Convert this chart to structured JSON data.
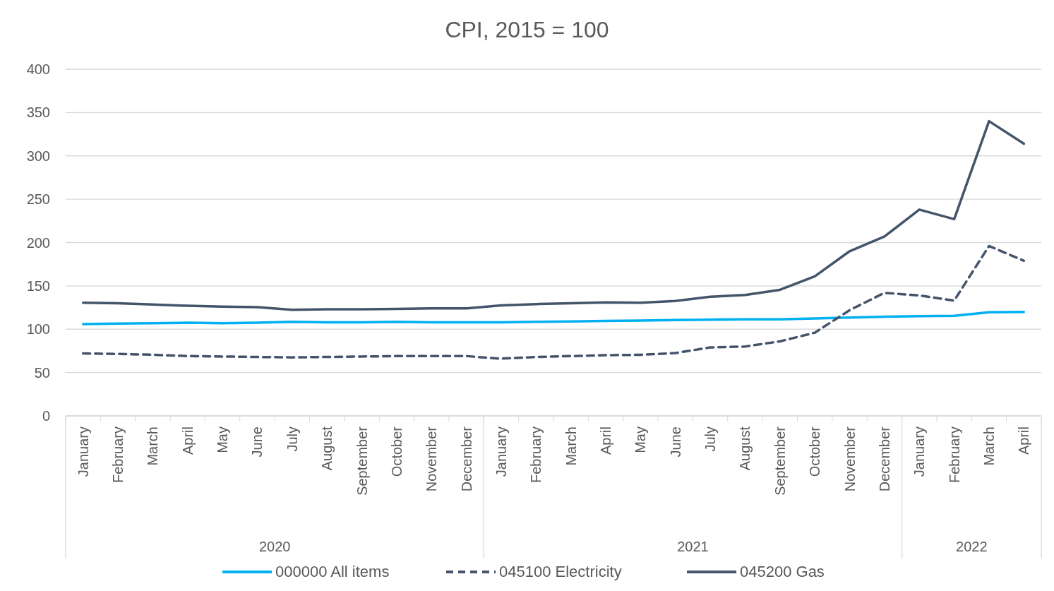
{
  "chart_data": {
    "type": "line",
    "title": "CPI, 2015 = 100",
    "categories": [
      "January",
      "February",
      "March",
      "April",
      "May",
      "June",
      "July",
      "August",
      "September",
      "October",
      "November",
      "December",
      "January",
      "February",
      "March",
      "April",
      "May",
      "June",
      "July",
      "August",
      "September",
      "October",
      "November",
      "December",
      "January",
      "February",
      "March",
      "April"
    ],
    "annotations": [
      "2020",
      "2021",
      "2022"
    ],
    "series": [
      {
        "name": "000000 All items",
        "color": "#00b0f0",
        "line_style": "solid",
        "values": [
          106,
          106.5,
          107,
          107.5,
          107,
          107.5,
          108.5,
          108,
          108,
          108.5,
          108,
          108,
          108,
          108.5,
          109,
          109.5,
          110,
          110.5,
          111,
          111.5,
          111.5,
          112.5,
          113.5,
          114.5,
          115,
          115.5,
          119.5,
          120
        ]
      },
      {
        "name": "045100 Electricity",
        "color": "#44546a",
        "line_style": "dashed",
        "values": [
          72,
          71.5,
          70.5,
          69,
          68.5,
          68,
          67.5,
          68,
          68.5,
          69,
          69,
          69,
          66,
          68,
          69,
          70,
          70.5,
          72.5,
          79,
          80,
          86,
          96,
          122,
          142,
          139,
          133,
          196,
          179
        ]
      },
      {
        "name": "045200 Gas",
        "color": "#44546a",
        "line_style": "solid",
        "values": [
          130.5,
          130,
          128.5,
          127,
          126,
          125.5,
          122.5,
          123,
          123,
          123.5,
          124,
          124,
          127.5,
          129,
          130,
          131,
          130.5,
          132.5,
          137.5,
          139.5,
          145.5,
          161,
          190,
          207,
          238,
          227,
          340,
          314
        ]
      }
    ],
    "ylim": [
      0,
      400
    ],
    "yticks": [
      0,
      50,
      100,
      150,
      200,
      250,
      300,
      350,
      400
    ],
    "grid": "y",
    "legend": "bottom"
  }
}
